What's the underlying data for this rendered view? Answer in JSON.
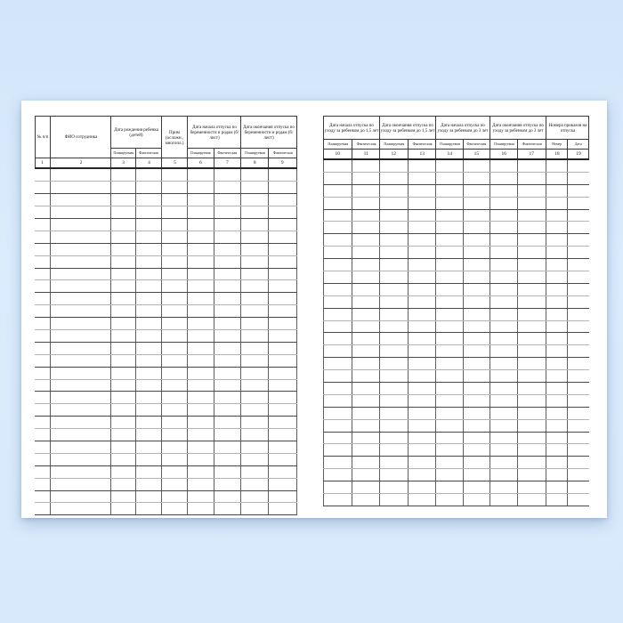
{
  "colors": {
    "background_top": "#d2e5f9",
    "background_bottom": "#d7e9fb",
    "paper": "#ffffff",
    "grid_dark": "#474747",
    "grid_light": "#b4b4b4"
  },
  "pages": [
    {
      "side": "left",
      "groups": [
        {
          "label": "№ п/п",
          "cols": 1,
          "num": "1"
        },
        {
          "label": "ФИО сотрудника",
          "cols": 1,
          "num": "2"
        },
        {
          "label": "Дата рождения ребенка (детей)",
          "cols": 2,
          "subs": [
            "Планируемая",
            "Фактическая"
          ],
          "nums": [
            "3",
            "4"
          ]
        },
        {
          "label": "Прим (осложн., многопл.)",
          "cols": 1,
          "num": "5"
        },
        {
          "label": "Дата начала отпуска по беременности и родам (б/лист)",
          "cols": 2,
          "subs": [
            "Планируемая",
            "Фактическая"
          ],
          "nums": [
            "6",
            "7"
          ]
        },
        {
          "label": "Дата окончания отпуска по беременности и родам (б/лист)",
          "cols": 2,
          "subs": [
            "Планируемая",
            "Фактическая"
          ],
          "nums": [
            "8",
            "9"
          ]
        }
      ],
      "data_rows": 28
    },
    {
      "side": "right",
      "groups": [
        {
          "label": "Дата начала отпуска по уходу за ребенком до 1,5 лет",
          "cols": 2,
          "subs": [
            "Планируемая",
            "Фактическая"
          ],
          "nums": [
            "10",
            "11"
          ]
        },
        {
          "label": "Дата окончания отпуска по уходу за ребенком до 1,5 лет",
          "cols": 2,
          "subs": [
            "Планируемая",
            "Фактическая"
          ],
          "nums": [
            "12",
            "13"
          ]
        },
        {
          "label": "Дата начала отпуска по уходу за ребенком до 3 лет",
          "cols": 2,
          "subs": [
            "Планируемая",
            "Фактическая"
          ],
          "nums": [
            "14",
            "15"
          ]
        },
        {
          "label": "Дата окончания отпуска по уходу за ребенком до 3 лет",
          "cols": 2,
          "subs": [
            "Планируемая",
            "Фактическая"
          ],
          "nums": [
            "16",
            "17"
          ]
        },
        {
          "label": "Номера приказов на отпуска",
          "cols": 2,
          "subs": [
            "Номер",
            "Дата"
          ],
          "nums": [
            "18",
            "19"
          ]
        }
      ],
      "data_rows": 28
    }
  ]
}
